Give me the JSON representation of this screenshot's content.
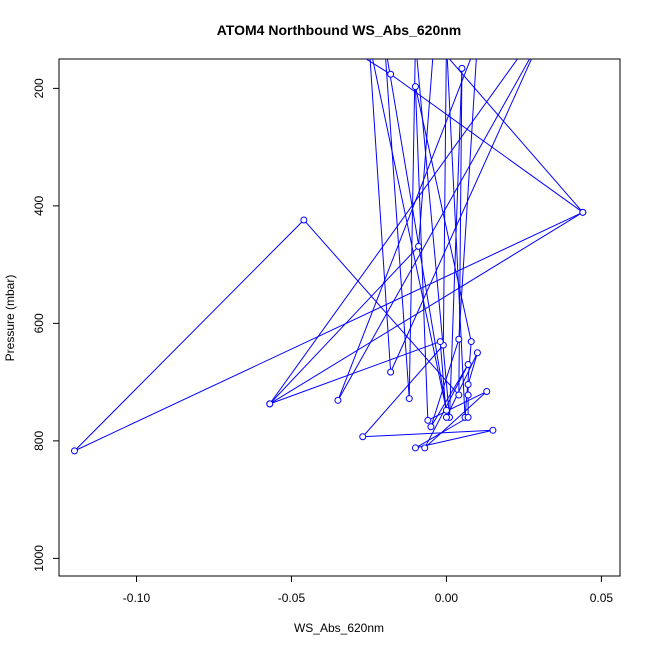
{
  "chart_data": {
    "type": "line",
    "title": "ATOM4 Northbound WS_Abs_620nm",
    "xlabel": "WS_Abs_620nm",
    "ylabel": "Pressure (mbar)",
    "xlim": [
      -0.125,
      0.056
    ],
    "ylim": [
      1030,
      150
    ],
    "x_ticks": [
      -0.1,
      -0.05,
      0.0,
      0.05
    ],
    "x_tick_labels": [
      "-0.10",
      "-0.05",
      "0.00",
      "0.05"
    ],
    "y_ticks": [
      200,
      400,
      600,
      800,
      1000
    ],
    "y_tick_labels": [
      "200",
      "400",
      "600",
      "800",
      "1000"
    ],
    "grid": false,
    "series": [
      {
        "color": "#0000ff",
        "marker": "open-circle",
        "points": [
          {
            "x": 0.027,
            "y": 120
          },
          {
            "x": -0.057,
            "y": 737
          },
          {
            "x": 0.044,
            "y": 411
          },
          {
            "x": -0.12,
            "y": 817
          },
          {
            "x": -0.046,
            "y": 424
          },
          {
            "x": 0.004,
            "y": 722
          },
          {
            "x": 0.005,
            "y": 166
          },
          {
            "x": 0.001,
            "y": 760
          },
          {
            "x": -0.01,
            "y": 120
          },
          {
            "x": -0.012,
            "y": 728
          },
          {
            "x": -0.02,
            "y": 120
          },
          {
            "x": 0.0,
            "y": 748
          },
          {
            "x": -0.025,
            "y": 120
          },
          {
            "x": -0.018,
            "y": 683
          },
          {
            "x": 0.03,
            "y": 120
          },
          {
            "x": -0.035,
            "y": 731
          },
          {
            "x": 0.01,
            "y": 120
          },
          {
            "x": 0.004,
            "y": 627
          },
          {
            "x": -0.005,
            "y": 776
          },
          {
            "x": 0.007,
            "y": 670
          },
          {
            "x": -0.007,
            "y": 812
          },
          {
            "x": 0.013,
            "y": 716
          },
          {
            "x": -0.006,
            "y": 765
          },
          {
            "x": -0.01,
            "y": 197
          },
          {
            "x": 0.008,
            "y": 631
          },
          {
            "x": 0.006,
            "y": 760
          },
          {
            "x": 0.0,
            "y": 120
          },
          {
            "x": -0.001,
            "y": 637
          },
          {
            "x": -0.027,
            "y": 793
          },
          {
            "x": 0.015,
            "y": 782
          },
          {
            "x": -0.01,
            "y": 812
          },
          {
            "x": 0.007,
            "y": 760
          },
          {
            "x": 0.007,
            "y": 722
          },
          {
            "x": 0.007,
            "y": 704
          },
          {
            "x": 0.01,
            "y": 650
          },
          {
            "x": 0.0,
            "y": 760
          },
          {
            "x": -0.002,
            "y": 631
          },
          {
            "x": -0.057,
            "y": 737
          },
          {
            "x": -0.009,
            "y": 469
          },
          {
            "x": -0.004,
            "y": 120
          },
          {
            "x": 0.044,
            "y": 411
          },
          {
            "x": -0.018,
            "y": 176
          },
          {
            "x": -0.035,
            "y": 120
          }
        ]
      }
    ]
  }
}
